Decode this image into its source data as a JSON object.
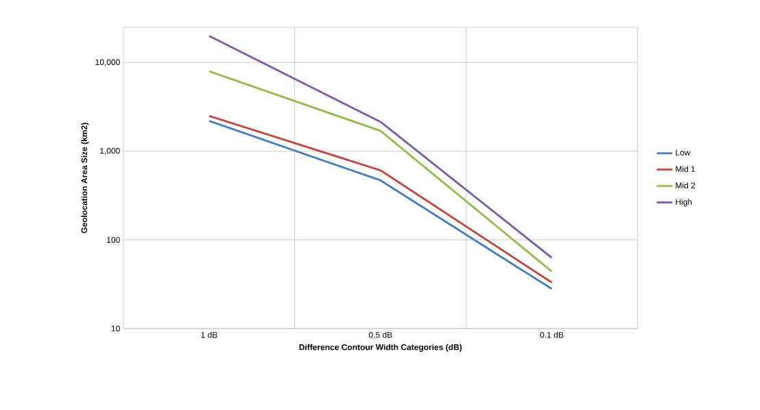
{
  "chart_data": {
    "type": "line",
    "xlabel": "Difference Contour Width Categories (dB)",
    "ylabel": "Geolocation Area Size (km2)",
    "categories": [
      "1 dB",
      "0.5 dB",
      "0.1 dB"
    ],
    "series": [
      {
        "name": "Low",
        "color": "#4a7ebb",
        "values": [
          2200,
          470,
          28
        ]
      },
      {
        "name": "Mid 1",
        "color": "#be4b48",
        "values": [
          2500,
          610,
          33
        ]
      },
      {
        "name": "Mid 2",
        "color": "#98b954",
        "values": [
          8000,
          1700,
          44
        ]
      },
      {
        "name": "High",
        "color": "#7d60a0",
        "values": [
          20000,
          2150,
          63
        ]
      }
    ],
    "log": "y",
    "ylim": [
      10,
      25000
    ],
    "yticks": [
      10,
      100,
      {
        "value": 1000,
        "label": "1,000"
      },
      {
        "value": 10000,
        "label": "10,000"
      }
    ],
    "grid": true,
    "legend": "right",
    "marker": "none",
    "line_style": "solid"
  }
}
